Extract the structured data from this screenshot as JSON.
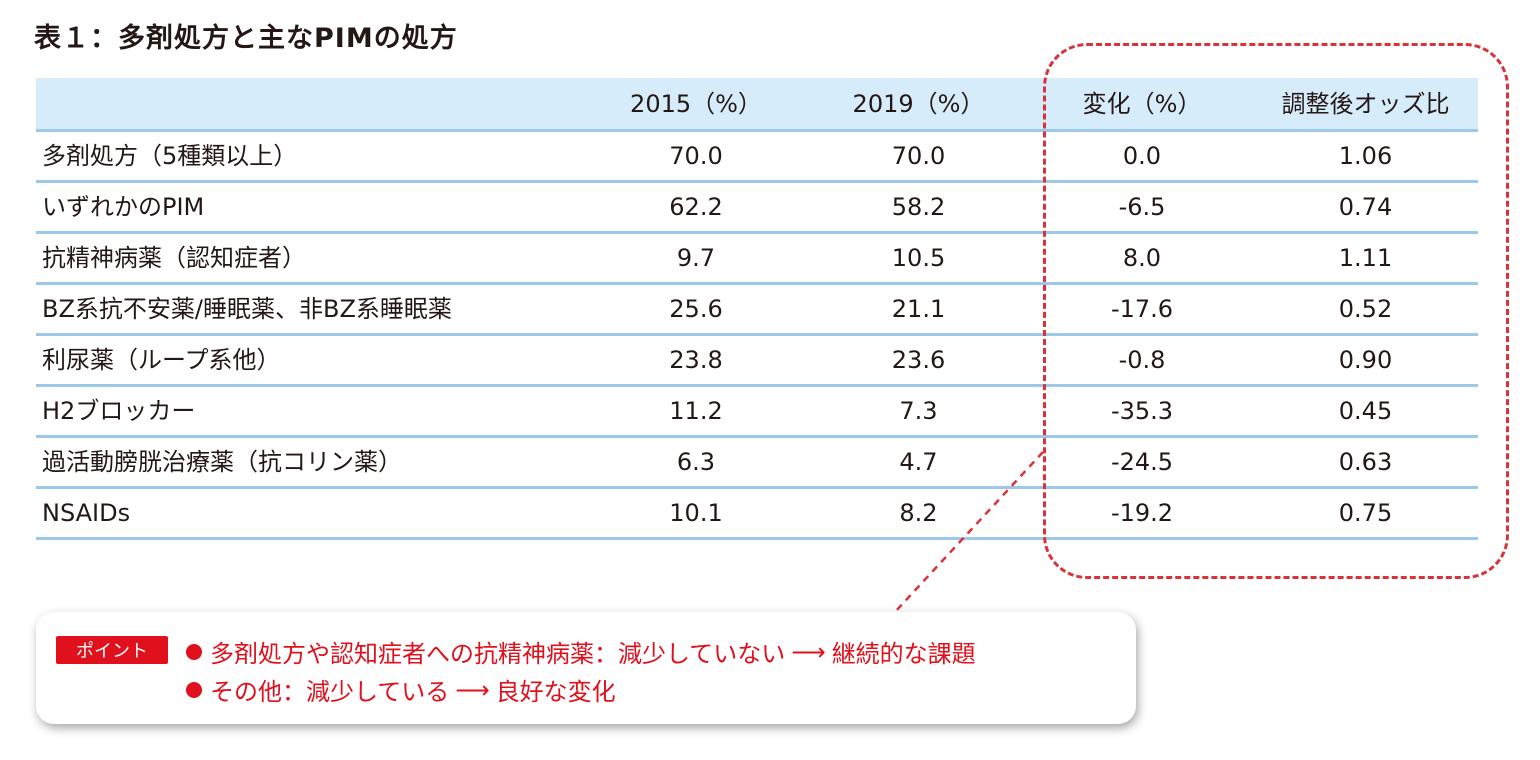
{
  "title": "表１：多剤処方と主なPIMの処方",
  "table": {
    "headers": [
      "",
      "2015（%）",
      "2019（%）",
      "変化（%）",
      "調整後オッズ比"
    ],
    "rows": [
      [
        "多剤処方（5種類以上）",
        "70.0",
        "70.0",
        "0.0",
        "1.06"
      ],
      [
        "いずれかのPIM",
        "62.2",
        "58.2",
        "-6.5",
        "0.74"
      ],
      [
        "抗精神病薬（認知症者）",
        "9.7",
        "10.5",
        "8.0",
        "1.11"
      ],
      [
        "BZ系抗不安薬/睡眠薬、非BZ系睡眠薬",
        "25.6",
        "21.1",
        "-17.6",
        "0.52"
      ],
      [
        "利尿薬（ループ系他）",
        "23.8",
        "23.6",
        "-0.8",
        "0.90"
      ],
      [
        "H2ブロッカー",
        "11.2",
        "7.3",
        "-35.3",
        "0.45"
      ],
      [
        "過活動膀胱治療薬（抗コリン薬）",
        "6.3",
        "4.7",
        "-24.5",
        "0.63"
      ],
      [
        "NSAIDs",
        "10.1",
        "8.2",
        "-19.2",
        "0.75"
      ]
    ]
  },
  "callout": {
    "badge": "ポイント",
    "point1_text": "多剤処方や認知症者への抗精神病薬：減少していない",
    "point1_result": "継続的な課題",
    "point2_text": "その他：減少している",
    "point2_result": "良好な変化",
    "arrow": "⟶"
  },
  "colors": {
    "accent_red": "#e0101c",
    "header_bg": "#d7ecfa",
    "row_line": "#9cc8ea",
    "dash": "#d9323b"
  }
}
